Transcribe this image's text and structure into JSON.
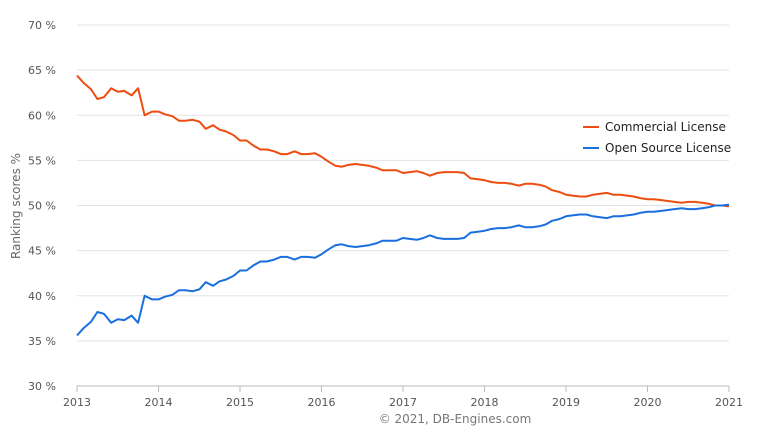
{
  "chart_data": {
    "type": "line",
    "ylabel": "Ranking scores %",
    "credit": "© 2021, DB-Engines.com",
    "legend_placement": "right",
    "grid": true,
    "ylim": [
      30,
      70
    ],
    "xlim": [
      2013,
      2021
    ],
    "y_ticks": [
      "70 %",
      "65 %",
      "60 %",
      "55 %",
      "50 %",
      "45 %",
      "40 %",
      "35 %",
      "30 %"
    ],
    "y_tick_values": [
      70,
      65,
      60,
      55,
      50,
      45,
      40,
      35,
      30
    ],
    "x_ticks": [
      "2013",
      "2014",
      "2015",
      "2016",
      "2017",
      "2018",
      "2019",
      "2020",
      "2021"
    ],
    "x_tick_values": [
      2013,
      2014,
      2015,
      2016,
      2017,
      2018,
      2019,
      2020,
      2021
    ],
    "series": [
      {
        "name": "Commercial License",
        "color": "#ee4d0f",
        "points": [
          [
            2013.0,
            64.4
          ],
          [
            2013.08,
            63.6
          ],
          [
            2013.17,
            62.9
          ],
          [
            2013.25,
            61.8
          ],
          [
            2013.33,
            62.0
          ],
          [
            2013.42,
            63.0
          ],
          [
            2013.5,
            62.6
          ],
          [
            2013.58,
            62.7
          ],
          [
            2013.67,
            62.2
          ],
          [
            2013.75,
            63.0
          ],
          [
            2013.83,
            60.0
          ],
          [
            2013.92,
            60.4
          ],
          [
            2014.0,
            60.4
          ],
          [
            2014.08,
            60.1
          ],
          [
            2014.17,
            59.9
          ],
          [
            2014.25,
            59.4
          ],
          [
            2014.33,
            59.4
          ],
          [
            2014.42,
            59.5
          ],
          [
            2014.5,
            59.3
          ],
          [
            2014.58,
            58.5
          ],
          [
            2014.67,
            58.9
          ],
          [
            2014.75,
            58.4
          ],
          [
            2014.83,
            58.2
          ],
          [
            2014.92,
            57.8
          ],
          [
            2015.0,
            57.2
          ],
          [
            2015.08,
            57.2
          ],
          [
            2015.17,
            56.6
          ],
          [
            2015.25,
            56.2
          ],
          [
            2015.33,
            56.2
          ],
          [
            2015.42,
            56.0
          ],
          [
            2015.5,
            55.7
          ],
          [
            2015.58,
            55.7
          ],
          [
            2015.67,
            56.0
          ],
          [
            2015.75,
            55.7
          ],
          [
            2015.83,
            55.7
          ],
          [
            2015.92,
            55.8
          ],
          [
            2016.0,
            55.4
          ],
          [
            2016.08,
            54.9
          ],
          [
            2016.17,
            54.4
          ],
          [
            2016.25,
            54.3
          ],
          [
            2016.33,
            54.5
          ],
          [
            2016.42,
            54.6
          ],
          [
            2016.5,
            54.5
          ],
          [
            2016.58,
            54.4
          ],
          [
            2016.67,
            54.2
          ],
          [
            2016.75,
            53.9
          ],
          [
            2016.83,
            53.9
          ],
          [
            2016.92,
            53.9
          ],
          [
            2017.0,
            53.6
          ],
          [
            2017.08,
            53.7
          ],
          [
            2017.17,
            53.8
          ],
          [
            2017.25,
            53.6
          ],
          [
            2017.33,
            53.3
          ],
          [
            2017.42,
            53.6
          ],
          [
            2017.5,
            53.7
          ],
          [
            2017.58,
            53.7
          ],
          [
            2017.67,
            53.7
          ],
          [
            2017.75,
            53.6
          ],
          [
            2017.83,
            53.0
          ],
          [
            2017.92,
            52.9
          ],
          [
            2018.0,
            52.8
          ],
          [
            2018.08,
            52.6
          ],
          [
            2018.17,
            52.5
          ],
          [
            2018.25,
            52.5
          ],
          [
            2018.33,
            52.4
          ],
          [
            2018.42,
            52.2
          ],
          [
            2018.5,
            52.4
          ],
          [
            2018.58,
            52.4
          ],
          [
            2018.67,
            52.3
          ],
          [
            2018.75,
            52.1
          ],
          [
            2018.83,
            51.7
          ],
          [
            2018.92,
            51.5
          ],
          [
            2019.0,
            51.2
          ],
          [
            2019.08,
            51.1
          ],
          [
            2019.17,
            51.0
          ],
          [
            2019.25,
            51.0
          ],
          [
            2019.33,
            51.2
          ],
          [
            2019.42,
            51.3
          ],
          [
            2019.5,
            51.4
          ],
          [
            2019.58,
            51.2
          ],
          [
            2019.67,
            51.2
          ],
          [
            2019.75,
            51.1
          ],
          [
            2019.83,
            51.0
          ],
          [
            2019.92,
            50.8
          ],
          [
            2020.0,
            50.7
          ],
          [
            2020.08,
            50.7
          ],
          [
            2020.17,
            50.6
          ],
          [
            2020.25,
            50.5
          ],
          [
            2020.33,
            50.4
          ],
          [
            2020.42,
            50.3
          ],
          [
            2020.5,
            50.4
          ],
          [
            2020.58,
            50.4
          ],
          [
            2020.67,
            50.3
          ],
          [
            2020.75,
            50.2
          ],
          [
            2020.83,
            50.0
          ],
          [
            2020.92,
            50.0
          ],
          [
            2021.0,
            49.9
          ]
        ]
      },
      {
        "name": "Open Source License",
        "color": "#1a6fe0",
        "points": [
          [
            2013.0,
            35.6
          ],
          [
            2013.08,
            36.4
          ],
          [
            2013.17,
            37.1
          ],
          [
            2013.25,
            38.2
          ],
          [
            2013.33,
            38.0
          ],
          [
            2013.42,
            37.0
          ],
          [
            2013.5,
            37.4
          ],
          [
            2013.58,
            37.3
          ],
          [
            2013.67,
            37.8
          ],
          [
            2013.75,
            37.0
          ],
          [
            2013.83,
            40.0
          ],
          [
            2013.92,
            39.6
          ],
          [
            2014.0,
            39.6
          ],
          [
            2014.08,
            39.9
          ],
          [
            2014.17,
            40.1
          ],
          [
            2014.25,
            40.6
          ],
          [
            2014.33,
            40.6
          ],
          [
            2014.42,
            40.5
          ],
          [
            2014.5,
            40.7
          ],
          [
            2014.58,
            41.5
          ],
          [
            2014.67,
            41.1
          ],
          [
            2014.75,
            41.6
          ],
          [
            2014.83,
            41.8
          ],
          [
            2014.92,
            42.2
          ],
          [
            2015.0,
            42.8
          ],
          [
            2015.08,
            42.8
          ],
          [
            2015.17,
            43.4
          ],
          [
            2015.25,
            43.8
          ],
          [
            2015.33,
            43.8
          ],
          [
            2015.42,
            44.0
          ],
          [
            2015.5,
            44.3
          ],
          [
            2015.58,
            44.3
          ],
          [
            2015.67,
            44.0
          ],
          [
            2015.75,
            44.3
          ],
          [
            2015.83,
            44.3
          ],
          [
            2015.92,
            44.2
          ],
          [
            2016.0,
            44.6
          ],
          [
            2016.08,
            45.1
          ],
          [
            2016.17,
            45.6
          ],
          [
            2016.25,
            45.7
          ],
          [
            2016.33,
            45.5
          ],
          [
            2016.42,
            45.4
          ],
          [
            2016.5,
            45.5
          ],
          [
            2016.58,
            45.6
          ],
          [
            2016.67,
            45.8
          ],
          [
            2016.75,
            46.1
          ],
          [
            2016.83,
            46.1
          ],
          [
            2016.92,
            46.1
          ],
          [
            2017.0,
            46.4
          ],
          [
            2017.08,
            46.3
          ],
          [
            2017.17,
            46.2
          ],
          [
            2017.25,
            46.4
          ],
          [
            2017.33,
            46.7
          ],
          [
            2017.42,
            46.4
          ],
          [
            2017.5,
            46.3
          ],
          [
            2017.58,
            46.3
          ],
          [
            2017.67,
            46.3
          ],
          [
            2017.75,
            46.4
          ],
          [
            2017.83,
            47.0
          ],
          [
            2017.92,
            47.1
          ],
          [
            2018.0,
            47.2
          ],
          [
            2018.08,
            47.4
          ],
          [
            2018.17,
            47.5
          ],
          [
            2018.25,
            47.5
          ],
          [
            2018.33,
            47.6
          ],
          [
            2018.42,
            47.8
          ],
          [
            2018.5,
            47.6
          ],
          [
            2018.58,
            47.6
          ],
          [
            2018.67,
            47.7
          ],
          [
            2018.75,
            47.9
          ],
          [
            2018.83,
            48.3
          ],
          [
            2018.92,
            48.5
          ],
          [
            2019.0,
            48.8
          ],
          [
            2019.08,
            48.9
          ],
          [
            2019.17,
            49.0
          ],
          [
            2019.25,
            49.0
          ],
          [
            2019.33,
            48.8
          ],
          [
            2019.42,
            48.7
          ],
          [
            2019.5,
            48.6
          ],
          [
            2019.58,
            48.8
          ],
          [
            2019.67,
            48.8
          ],
          [
            2019.75,
            48.9
          ],
          [
            2019.83,
            49.0
          ],
          [
            2019.92,
            49.2
          ],
          [
            2020.0,
            49.3
          ],
          [
            2020.08,
            49.3
          ],
          [
            2020.17,
            49.4
          ],
          [
            2020.25,
            49.5
          ],
          [
            2020.33,
            49.6
          ],
          [
            2020.42,
            49.7
          ],
          [
            2020.5,
            49.6
          ],
          [
            2020.58,
            49.6
          ],
          [
            2020.67,
            49.7
          ],
          [
            2020.75,
            49.8
          ],
          [
            2020.83,
            50.0
          ],
          [
            2020.92,
            50.0
          ],
          [
            2021.0,
            50.1
          ]
        ]
      }
    ]
  }
}
